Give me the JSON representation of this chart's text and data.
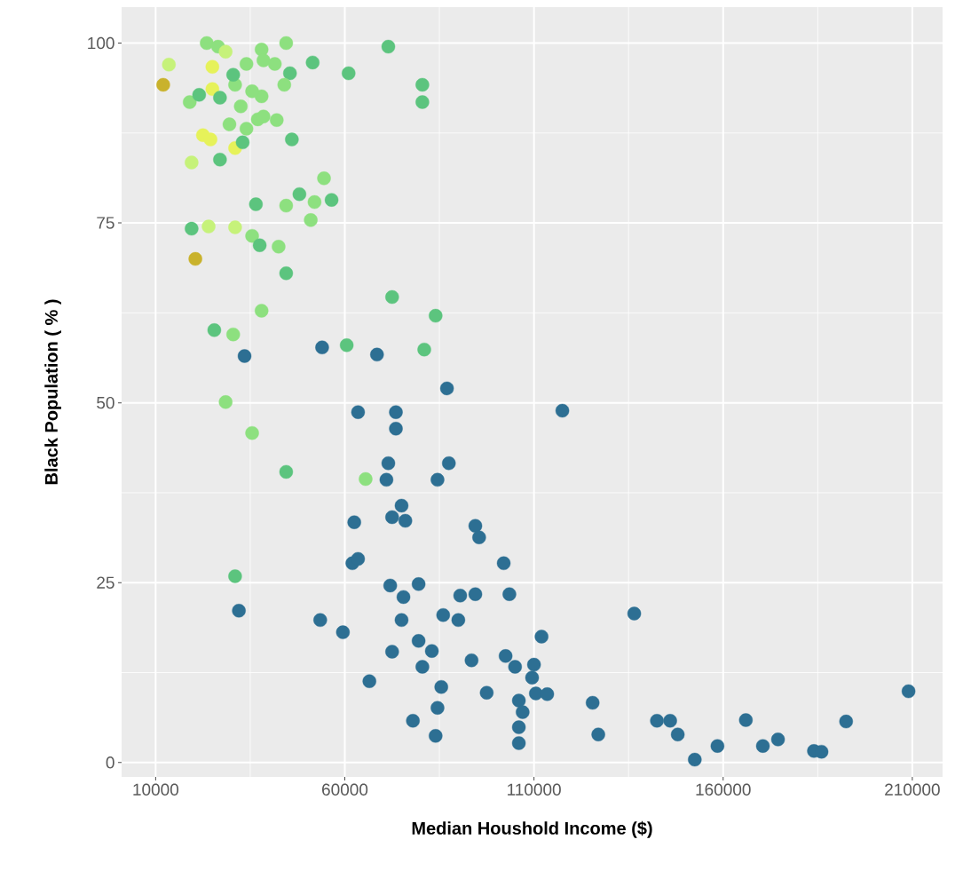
{
  "chart_data": {
    "type": "scatter",
    "xlabel": "Median Houshold Income ($)",
    "ylabel": "Black Population ( % )",
    "xlim": [
      1000,
      218000
    ],
    "ylim": [
      -2,
      105
    ],
    "xticks": [
      10000,
      60000,
      110000,
      160000,
      210000
    ],
    "yticks": [
      0,
      25,
      50,
      75,
      100
    ],
    "grid": true,
    "marker": "circle",
    "x": [
      12000,
      13500,
      23500,
      26500,
      28500,
      25000,
      25000,
      19000,
      21500,
      27000,
      31000,
      30500,
      34000,
      38000,
      38500,
      41500,
      44500,
      45500,
      44000,
      51500,
      61000,
      71500,
      80500,
      80500,
      19500,
      22500,
      24500,
      27000,
      31000,
      33000,
      37000,
      38500,
      34000,
      29500,
      32500,
      42000,
      38000,
      35500,
      46000,
      54500,
      48000,
      52000,
      56500,
      51000,
      19500,
      24000,
      20500,
      31000,
      35500,
      37500,
      42500,
      36500,
      44500,
      44500,
      38000,
      25500,
      30500,
      33500,
      54000,
      60500,
      68500,
      72500,
      84000,
      81000,
      87000,
      28500,
      35500,
      44500,
      63500,
      73500,
      73500,
      65500,
      71000,
      84500,
      87500,
      117500,
      71500,
      62500,
      72500,
      75000,
      76000,
      62000,
      63500,
      72000,
      79500,
      75500,
      94500,
      95500,
      102000,
      90500,
      94500,
      103500,
      53500,
      59500,
      75000,
      86000,
      90000,
      72500,
      79500,
      83000,
      80500,
      93500,
      102500,
      105000,
      110000,
      112000,
      66500,
      85500,
      84500,
      78000,
      84000,
      97500,
      106000,
      110500,
      113500,
      109500,
      107000,
      106000,
      106000,
      125500,
      127000,
      136500,
      142500,
      146000,
      148000,
      152500,
      158500,
      166000,
      170500,
      174500,
      184000,
      186000,
      192500,
      209000,
      32000,
      31000
    ],
    "values": [
      94.2,
      97.0,
      100,
      99.5,
      98.8,
      96.7,
      93.6,
      91.8,
      92.8,
      92.4,
      94.2,
      95.6,
      97.1,
      99.1,
      97.6,
      97.1,
      100,
      95.8,
      94.2,
      97.3,
      95.8,
      99.5,
      94.2,
      91.8,
      83.4,
      87.2,
      86.6,
      83.8,
      85.4,
      86.2,
      89.4,
      89.8,
      88.1,
      88.7,
      91.2,
      89.3,
      92.6,
      93.3,
      86.6,
      81.2,
      79.0,
      77.9,
      78.2,
      75.4,
      74.2,
      74.5,
      70.0,
      74.4,
      73.2,
      71.9,
      71.7,
      77.6,
      77.4,
      68.0,
      62.8,
      60.1,
      59.5,
      56.5,
      57.7,
      58.0,
      56.7,
      64.7,
      62.1,
      57.4,
      52.0,
      50.1,
      45.8,
      40.4,
      48.7,
      48.7,
      46.4,
      39.4,
      39.3,
      39.3,
      41.6,
      48.9,
      41.6,
      33.4,
      34.1,
      35.7,
      33.6,
      27.7,
      28.3,
      24.6,
      24.8,
      23.0,
      32.9,
      31.3,
      27.7,
      23.2,
      23.4,
      23.4,
      19.8,
      18.1,
      19.8,
      20.5,
      19.8,
      15.4,
      16.9,
      15.5,
      13.3,
      14.2,
      14.8,
      13.3,
      13.6,
      17.5,
      11.3,
      10.5,
      7.6,
      5.8,
      3.7,
      9.7,
      8.6,
      9.6,
      9.5,
      11.8,
      7.0,
      4.9,
      2.7,
      8.3,
      3.9,
      20.7,
      5.8,
      5.8,
      3.9,
      0.4,
      2.3,
      5.9,
      2.3,
      3.2,
      1.6,
      1.5,
      5.7,
      9.9,
      21.1,
      25.9
    ],
    "colors": [
      "#c9b22c",
      "#c6f27a",
      "#8de07f",
      "#8de07f",
      "#c6f27a",
      "#e6f25a",
      "#e6f25a",
      "#8de07f",
      "#5cc47e",
      "#5cc47e",
      "#8de07f",
      "#5cc47e",
      "#8de07f",
      "#8de07f",
      "#8de07f",
      "#8de07f",
      "#8de07f",
      "#5cc47e",
      "#8de07f",
      "#5cc47e",
      "#5cc47e",
      "#5cc47e",
      "#5cc47e",
      "#5cc47e",
      "#c6f27a",
      "#e6f25a",
      "#e6f25a",
      "#5cc47e",
      "#e6f25a",
      "#5cc47e",
      "#8de07f",
      "#8de07f",
      "#8de07f",
      "#8de07f",
      "#8de07f",
      "#8de07f",
      "#8de07f",
      "#8de07f",
      "#5cc47e",
      "#8de07f",
      "#5cc47e",
      "#8de07f",
      "#5cc47e",
      "#8de07f",
      "#5cc47e",
      "#c6f27a",
      "#c9b22c",
      "#c6f27a",
      "#8de07f",
      "#5cc47e",
      "#8de07f",
      "#5cc47e",
      "#8de07f",
      "#5cc47e",
      "#8de07f",
      "#5cc47e",
      "#8de07f",
      "#2d6f93",
      "#2d6f93",
      "#5cc47e",
      "#2d6f93",
      "#5cc47e",
      "#5cc47e",
      "#5cc47e",
      "#2d6f93",
      "#8de07f",
      "#8de07f",
      "#5cc47e",
      "#2d6f93",
      "#2d6f93",
      "#2d6f93",
      "#8de07f",
      "#2d6f93",
      "#2d6f93",
      "#2d6f93",
      "#2d6f93",
      "#2d6f93",
      "#2d6f93",
      "#2d6f93",
      "#2d6f93",
      "#2d6f93",
      "#2d6f93",
      "#2d6f93",
      "#2d6f93",
      "#2d6f93",
      "#2d6f93",
      "#2d6f93",
      "#2d6f93",
      "#2d6f93",
      "#2d6f93",
      "#2d6f93",
      "#2d6f93",
      "#2d6f93",
      "#2d6f93",
      "#2d6f93",
      "#2d6f93",
      "#2d6f93",
      "#2d6f93",
      "#2d6f93",
      "#2d6f93",
      "#2d6f93",
      "#2d6f93",
      "#2d6f93",
      "#2d6f93",
      "#2d6f93",
      "#2d6f93",
      "#2d6f93",
      "#2d6f93",
      "#2d6f93",
      "#2d6f93",
      "#2d6f93",
      "#2d6f93",
      "#2d6f93",
      "#2d6f93",
      "#2d6f93",
      "#2d6f93",
      "#2d6f93",
      "#2d6f93",
      "#2d6f93",
      "#2d6f93",
      "#2d6f93",
      "#2d6f93",
      "#2d6f93",
      "#2d6f93",
      "#2d6f93",
      "#2d6f93",
      "#2d6f93",
      "#2d6f93",
      "#2d6f93",
      "#2d6f93",
      "#2d6f93",
      "#2d6f93",
      "#2d6f93",
      "#2d6f93",
      "#2d6f93",
      "#5cc47e"
    ]
  }
}
